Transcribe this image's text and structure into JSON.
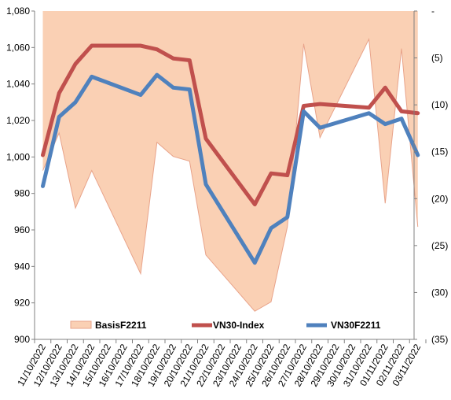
{
  "chart_data": {
    "type": "line",
    "categories": [
      "11/10/2022",
      "12/10/2022",
      "13/10/2022",
      "14/10/2022",
      "15/10/2022",
      "16/10/2022",
      "17/10/2022",
      "18/10/2022",
      "19/10/2022",
      "20/10/2022",
      "21/10/2022",
      "22/10/2022",
      "23/10/2022",
      "24/10/2022",
      "25/10/2022",
      "26/10/2022",
      "27/10/2022",
      "28/10/2022",
      "29/10/2022",
      "30/10/2022",
      "31/10/2022",
      "01/11/2022",
      "02/11/2022",
      "03/11/2022"
    ],
    "left_axis": {
      "min": 900,
      "max": 1080,
      "ticks": [
        900,
        920,
        940,
        960,
        980,
        1000,
        1020,
        1040,
        1060,
        1080
      ],
      "tick_labels": [
        "900",
        "920",
        "940",
        "960",
        "980",
        "1,000",
        "1,020",
        "1,040",
        "1,060",
        "1,080"
      ]
    },
    "right_axis": {
      "min": -35,
      "max": 0,
      "ticks": [
        0,
        -5,
        -10,
        -15,
        -20,
        -25,
        -30,
        -35
      ],
      "tick_labels": [
        "-",
        "(5)",
        "(10)",
        "(15)",
        "(20)",
        "(25)",
        "(30)",
        "(35)"
      ]
    },
    "series": [
      {
        "name": "BasisF2211",
        "kind": "area",
        "axis": "right",
        "color": "#FAD0B4",
        "stroke": "#E8A38A",
        "x": [
          0,
          1,
          2,
          3,
          6,
          7,
          8,
          9,
          10,
          13,
          14,
          15,
          16,
          17,
          20,
          21,
          22,
          23
        ],
        "values": [
          -17,
          -13,
          -21,
          -17,
          -28,
          -14,
          -15.5,
          -16,
          -26,
          -32,
          -31,
          -23,
          -3.5,
          -13.5,
          -3,
          -20.5,
          -4,
          -23
        ]
      },
      {
        "name": "VN30-Index",
        "kind": "line",
        "axis": "left",
        "color": "#C0504D",
        "x": [
          0,
          1,
          2,
          3,
          6,
          7,
          8,
          9,
          10,
          13,
          14,
          15,
          16,
          17,
          20,
          21,
          22,
          23
        ],
        "values": [
          1001,
          1035,
          1051,
          1061,
          1061,
          1059,
          1054,
          1053,
          1010,
          974,
          991,
          990,
          1028,
          1029,
          1027,
          1038,
          1025,
          1024
        ]
      },
      {
        "name": "VN30F2211",
        "kind": "line",
        "axis": "right-scaled",
        "color": "#4F81BD",
        "x": [
          0,
          1,
          2,
          3,
          6,
          7,
          8,
          9,
          10,
          13,
          14,
          15,
          16,
          17,
          20,
          21,
          22,
          23
        ],
        "values": [
          984,
          1022,
          1030,
          1044,
          1034,
          1045,
          1038,
          1037,
          985,
          942,
          961,
          967,
          1025,
          1016,
          1024,
          1018,
          1021,
          1001
        ]
      }
    ],
    "legend": {
      "position": "bottom",
      "items": [
        "BasisF2211",
        "VN30-Index",
        "VN30F2211"
      ]
    },
    "grid": false
  }
}
